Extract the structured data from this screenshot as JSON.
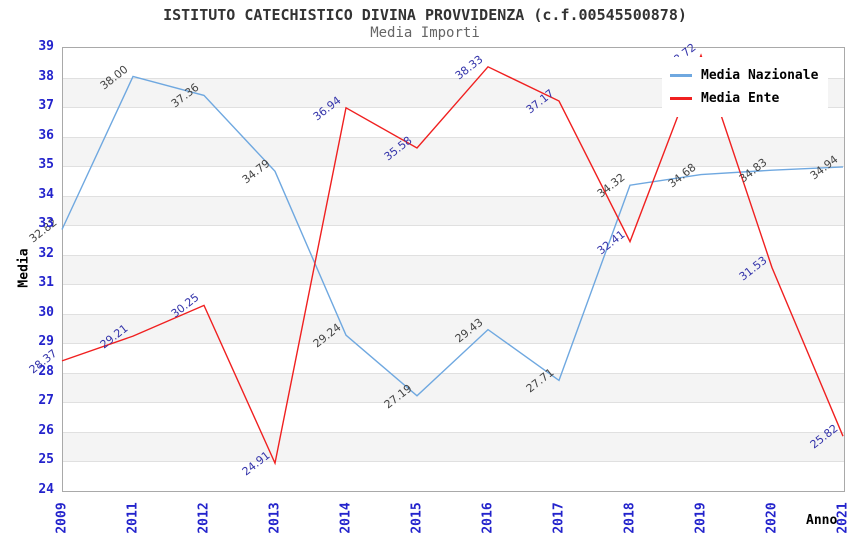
{
  "title": "ISTITUTO CATECHISTICO DIVINA PROVVIDENZA (c.f.00545500878)",
  "subtitle": "Media Importi",
  "chart_data": {
    "type": "line",
    "title": "ISTITUTO CATECHISTICO DIVINA PROVVIDENZA (c.f.00545500878)",
    "subtitle": "Media Importi",
    "xlabel": "Anno",
    "ylabel": "Media",
    "categories": [
      "2009",
      "2011",
      "2012",
      "2013",
      "2014",
      "2015",
      "2016",
      "2017",
      "2018",
      "2019",
      "2020",
      "2021"
    ],
    "series": [
      {
        "name": "Media Nazionale",
        "color": "#6fa8e0",
        "label_color": "#444444",
        "values": [
          32.82,
          38.0,
          37.36,
          34.79,
          29.24,
          27.19,
          29.43,
          27.71,
          34.32,
          34.68,
          34.83,
          34.94
        ]
      },
      {
        "name": "Media Ente",
        "color": "#f02020",
        "label_color": "#3434aa",
        "values": [
          28.37,
          29.21,
          30.25,
          24.91,
          36.94,
          35.58,
          38.33,
          37.17,
          32.41,
          38.72,
          31.53,
          25.82
        ]
      }
    ],
    "ylim": [
      24,
      39
    ],
    "ytick_step": 1,
    "grid": "horizontal-only",
    "band_colors": [
      "#ffffff",
      "#f4f4f4"
    ],
    "gridline_color": "#e0e0e0",
    "axis_tick_color": "#2323cc",
    "legend_position": "top-right",
    "value_labels_rotation_deg": -38
  }
}
